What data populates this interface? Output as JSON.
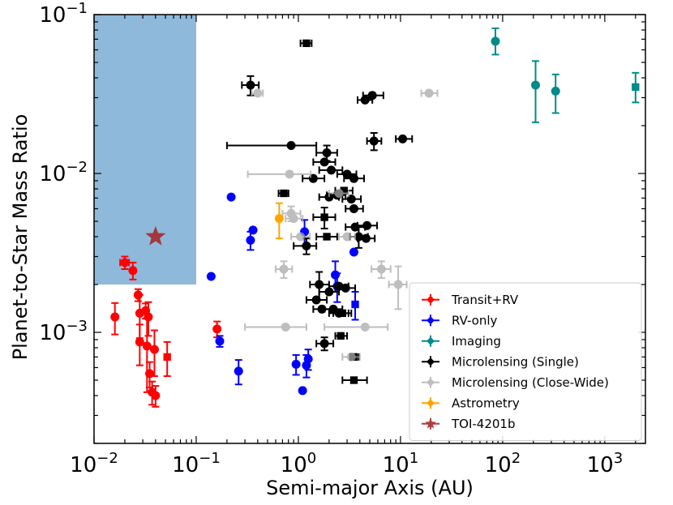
{
  "chart_data": {
    "type": "scatter",
    "title": "",
    "xlabel": "Semi-major Axis (AU)",
    "ylabel": "Planet-to-Star Mass Ratio",
    "xscale": "log",
    "yscale": "log",
    "xlim": [
      0.01,
      2500
    ],
    "ylim": [
      0.0002,
      0.1
    ],
    "x_ticks": [
      {
        "value": 0.01,
        "base": "10",
        "exp": "−2"
      },
      {
        "value": 0.1,
        "base": "10",
        "exp": "−1"
      },
      {
        "value": 1,
        "base": "10",
        "exp": "0"
      },
      {
        "value": 10,
        "base": "10",
        "exp": "1"
      },
      {
        "value": 100,
        "base": "10",
        "exp": "2"
      },
      {
        "value": 1000,
        "base": "10",
        "exp": "3"
      }
    ],
    "y_ticks": [
      {
        "value": 0.001,
        "base": "10",
        "exp": "−3"
      },
      {
        "value": 0.01,
        "base": "10",
        "exp": "−2"
      },
      {
        "value": 0.1,
        "base": "10",
        "exp": "−1"
      }
    ],
    "shaded_region": {
      "x": [
        0.01,
        0.1
      ],
      "y": [
        0.002,
        0.1
      ],
      "color": "#8fb9db"
    },
    "legend_position": "lower right",
    "series": [
      {
        "name": "Transit+RV",
        "color": "#ff0000",
        "alpha": 1,
        "points": [
          {
            "x": 0.016,
            "y": 0.00125,
            "yerr": [
              0.00028,
              0.00028
            ],
            "marker": "o"
          },
          {
            "x": 0.02,
            "y": 0.00275,
            "yerr": [
              0.00025,
              0.00025
            ],
            "xerr": [
              0.002,
              0.002
            ],
            "marker": "o"
          },
          {
            "x": 0.024,
            "y": 0.00245,
            "yerr": [
              0.0003,
              0.0003
            ],
            "marker": "o"
          },
          {
            "x": 0.027,
            "y": 0.00172,
            "yerr": [
              0.00015,
              0.00015
            ],
            "marker": "o"
          },
          {
            "x": 0.028,
            "y": 0.00132,
            "yerr": [
              0.0004,
              0.0004
            ],
            "marker": "o"
          },
          {
            "x": 0.028,
            "y": 0.00087,
            "yerr": [
              0.00025,
              0.00025
            ],
            "marker": "o"
          },
          {
            "x": 0.032,
            "y": 0.00137,
            "yerr": [
              0.00015,
              0.00015
            ],
            "marker": "o"
          },
          {
            "x": 0.033,
            "y": 0.00082,
            "yerr": [
              0.0004,
              0.0004
            ],
            "marker": "o"
          },
          {
            "x": 0.034,
            "y": 0.00125,
            "yerr": [
              0.0003,
              0.0003
            ],
            "marker": "o"
          },
          {
            "x": 0.035,
            "y": 0.00055,
            "yerr": [
              0.0001,
              0.0001
            ],
            "marker": "o"
          },
          {
            "x": 0.037,
            "y": 0.00042,
            "yerr": [
              7e-05,
              7e-05
            ],
            "marker": "o"
          },
          {
            "x": 0.039,
            "y": 0.00078,
            "yerr": [
              0.00025,
              0.00025
            ],
            "marker": "o"
          },
          {
            "x": 0.04,
            "y": 0.0004,
            "yerr": [
              6e-05,
              6e-05
            ],
            "marker": "o"
          },
          {
            "x": 0.052,
            "y": 0.0007,
            "yerr": [
              0.00017,
              0.00017
            ],
            "marker": "s"
          },
          {
            "x": 0.16,
            "y": 0.00105,
            "yerr": [
              0.00012,
              0.00012
            ],
            "marker": "o"
          }
        ]
      },
      {
        "name": "RV-only",
        "color": "#0000ff",
        "alpha": 1,
        "points": [
          {
            "x": 0.14,
            "y": 0.00225,
            "marker": "o"
          },
          {
            "x": 0.17,
            "y": 0.00088,
            "yerr": [
              7e-05,
              7e-05
            ],
            "marker": "o"
          },
          {
            "x": 0.22,
            "y": 0.0071,
            "marker": "o"
          },
          {
            "x": 0.26,
            "y": 0.00057,
            "yerr": [
              0.0001,
              0.0001
            ],
            "marker": "o"
          },
          {
            "x": 0.34,
            "y": 0.0038,
            "yerr": [
              0.0005,
              0.0005
            ],
            "marker": "o"
          },
          {
            "x": 0.36,
            "y": 0.0044,
            "marker": "o"
          },
          {
            "x": 0.95,
            "y": 0.00063,
            "yerr": [
              9e-05,
              9e-05
            ],
            "marker": "o"
          },
          {
            "x": 1.1,
            "y": 0.00043,
            "marker": "o"
          },
          {
            "x": 1.15,
            "y": 0.0043,
            "yerr": [
              0.0008,
              0.0008
            ],
            "marker": "o"
          },
          {
            "x": 1.2,
            "y": 0.00062,
            "yerr": [
              0.0001,
              0.0001
            ],
            "marker": "o"
          },
          {
            "x": 1.25,
            "y": 0.00068,
            "yerr": [
              0.0001,
              0.0001
            ],
            "marker": "o"
          },
          {
            "x": 2.3,
            "y": 0.0023,
            "yerr": [
              0.0005,
              0.0005
            ],
            "marker": "o"
          },
          {
            "x": 2.4,
            "y": 0.00195,
            "yerr": [
              0.0004,
              0.0004
            ],
            "marker": "o"
          },
          {
            "x": 3.5,
            "y": 0.0032,
            "marker": "o"
          },
          {
            "x": 3.6,
            "y": 0.0015,
            "yerr": [
              0.0003,
              0.0003
            ],
            "marker": "s"
          }
        ]
      },
      {
        "name": "Imaging",
        "color": "#008b8b",
        "alpha": 1,
        "points": [
          {
            "x": 85,
            "y": 0.068,
            "yerr": [
              0.012,
              0.014
            ],
            "marker": "o"
          },
          {
            "x": 210,
            "y": 0.036,
            "yerr": [
              0.015,
              0.015
            ],
            "marker": "o"
          },
          {
            "x": 330,
            "y": 0.033,
            "yerr": [
              0.009,
              0.009
            ],
            "marker": "o"
          },
          {
            "x": 2000,
            "y": 0.035,
            "yerr": [
              0.007,
              0.008
            ],
            "marker": "s"
          }
        ]
      },
      {
        "name": "Microlensing (Single)",
        "color": "#000000",
        "alpha": 1,
        "points": [
          {
            "x": 1.2,
            "y": 0.066,
            "xerr": [
              0.15,
              0.15
            ],
            "marker": "s"
          },
          {
            "x": 0.34,
            "y": 0.036,
            "xerr": [
              0.06,
              0.07
            ],
            "yerr": [
              0.005,
              0.005
            ],
            "marker": "o"
          },
          {
            "x": 4.5,
            "y": 0.029,
            "xerr": [
              0.7,
              0.8
            ],
            "marker": "o"
          },
          {
            "x": 5.3,
            "y": 0.031,
            "xerr": [
              1.0,
              1.5
            ],
            "marker": "o"
          },
          {
            "x": 5.5,
            "y": 0.016,
            "xerr": [
              0.8,
              1.0
            ],
            "yerr": [
              0.002,
              0.002
            ],
            "marker": "o"
          },
          {
            "x": 10.5,
            "y": 0.0165,
            "xerr": [
              1.5,
              2.5
            ],
            "marker": "o"
          },
          {
            "x": 0.85,
            "y": 0.015,
            "xerr": [
              0.65,
              0.65
            ],
            "marker": "o"
          },
          {
            "x": 1.9,
            "y": 0.0135,
            "xerr": [
              0.4,
              0.5
            ],
            "yerr": [
              0.0015,
              0.0015
            ],
            "marker": "o"
          },
          {
            "x": 1.8,
            "y": 0.0118,
            "xerr": [
              0.4,
              0.5
            ],
            "marker": "o"
          },
          {
            "x": 2.1,
            "y": 0.0105,
            "xerr": [
              0.5,
              0.6
            ],
            "marker": "o"
          },
          {
            "x": 3.0,
            "y": 0.0099,
            "xerr": [
              0.6,
              0.7
            ],
            "marker": "o"
          },
          {
            "x": 1.4,
            "y": 0.0093,
            "xerr": [
              0.3,
              0.4
            ],
            "marker": "o"
          },
          {
            "x": 3.5,
            "y": 0.0093,
            "xerr": [
              0.7,
              0.9
            ],
            "marker": "o"
          },
          {
            "x": 2.8,
            "y": 0.0078,
            "xerr": [
              0.5,
              0.6
            ],
            "marker": "s"
          },
          {
            "x": 0.72,
            "y": 0.0075,
            "xerr": [
              0.08,
              0.08
            ],
            "marker": "s"
          },
          {
            "x": 2.0,
            "y": 0.0071,
            "xerr": [
              0.4,
              0.5
            ],
            "marker": "o"
          },
          {
            "x": 2.4,
            "y": 0.0073,
            "xerr": [
              0.5,
              0.5
            ],
            "marker": "o"
          },
          {
            "x": 3.3,
            "y": 0.0069,
            "xerr": [
              0.6,
              0.8
            ],
            "marker": "o"
          },
          {
            "x": 3.5,
            "y": 0.006,
            "xerr": [
              0.6,
              0.8
            ],
            "marker": "o"
          },
          {
            "x": 1.8,
            "y": 0.0053,
            "xerr": [
              0.4,
              0.5
            ],
            "yerr": [
              0.0008,
              0.0008
            ],
            "marker": "s"
          },
          {
            "x": 3.6,
            "y": 0.0046,
            "xerr": [
              0.7,
              0.9
            ],
            "marker": "o"
          },
          {
            "x": 4.7,
            "y": 0.0047,
            "xerr": [
              0.9,
              1.2
            ],
            "marker": "o"
          },
          {
            "x": 1.9,
            "y": 0.004,
            "xerr": [
              0.4,
              0.5
            ],
            "marker": "s"
          },
          {
            "x": 3.9,
            "y": 0.004,
            "xerr": [
              0.7,
              0.9
            ],
            "yerr": [
              0.0006,
              0.0006
            ],
            "marker": "o"
          },
          {
            "x": 4.6,
            "y": 0.0039,
            "xerr": [
              0.8,
              1.0
            ],
            "marker": "o"
          },
          {
            "x": 1.2,
            "y": 0.0035,
            "xerr": [
              0.3,
              0.3
            ],
            "yerr": [
              0.0004,
              0.0004
            ],
            "marker": "o"
          },
          {
            "x": 1.6,
            "y": 0.002,
            "xerr": [
              0.3,
              0.4
            ],
            "yerr": [
              0.0004,
              0.0004
            ],
            "marker": "o"
          },
          {
            "x": 2.0,
            "y": 0.0018,
            "xerr": [
              0.4,
              0.5
            ],
            "marker": "o"
          },
          {
            "x": 2.5,
            "y": 0.00195,
            "xerr": [
              0.5,
              0.6
            ],
            "marker": "o"
          },
          {
            "x": 2.9,
            "y": 0.0019,
            "xerr": [
              0.6,
              0.7
            ],
            "marker": "o"
          },
          {
            "x": 1.5,
            "y": 0.0016,
            "xerr": [
              0.3,
              0.4
            ],
            "marker": "o"
          },
          {
            "x": 1.7,
            "y": 0.0014,
            "xerr": [
              0.3,
              0.4
            ],
            "marker": "o"
          },
          {
            "x": 2.2,
            "y": 0.0014,
            "xerr": [
              0.4,
              0.5
            ],
            "marker": "o"
          },
          {
            "x": 2.5,
            "y": 0.00132,
            "xerr": [
              0.5,
              0.6
            ],
            "marker": "o"
          },
          {
            "x": 2.7,
            "y": 0.00132,
            "xerr": [
              0.5,
              0.6
            ],
            "marker": "s"
          },
          {
            "x": 2.6,
            "y": 0.00095,
            "xerr": [
              0.3,
              0.4
            ],
            "marker": "s"
          },
          {
            "x": 1.8,
            "y": 0.00085,
            "xerr": [
              0.3,
              0.4
            ],
            "yerr": [
              8e-05,
              8e-05
            ],
            "marker": "o"
          },
          {
            "x": 3.5,
            "y": 0.0007,
            "xerr": [
              0.3,
              0.4
            ],
            "marker": "s"
          },
          {
            "x": 3.5,
            "y": 0.0005,
            "xerr": [
              0.8,
              1.2
            ],
            "marker": "s"
          }
        ]
      },
      {
        "name": "Microlensing (Close-Wide)",
        "color": "#a9a9a9",
        "alpha": 0.75,
        "points": [
          {
            "x": 0.4,
            "y": 0.032,
            "xerr": [
              0.05,
              0.05
            ],
            "marker": "o"
          },
          {
            "x": 19,
            "y": 0.032,
            "xerr": [
              3,
              4
            ],
            "marker": "o"
          },
          {
            "x": 0.82,
            "y": 0.0099,
            "xerr": [
              0.5,
              0.5
            ],
            "marker": "o"
          },
          {
            "x": 2.5,
            "y": 0.0075,
            "xerr": [
              0.5,
              0.6
            ],
            "marker": "o"
          },
          {
            "x": 0.85,
            "y": 0.0056,
            "xerr": [
              0.15,
              0.2
            ],
            "yerr": [
              0.0006,
              0.0006
            ],
            "marker": "o"
          },
          {
            "x": 0.9,
            "y": 0.0052,
            "xerr": [
              0.15,
              0.2
            ],
            "marker": "o"
          },
          {
            "x": 1.05,
            "y": 0.004,
            "xerr": [
              0.2,
              0.25
            ],
            "marker": "o"
          },
          {
            "x": 3.0,
            "y": 0.004,
            "xerr": [
              0.5,
              0.6
            ],
            "marker": "o"
          },
          {
            "x": 0.72,
            "y": 0.0025,
            "xerr": [
              0.12,
              0.15
            ],
            "yerr": [
              0.0003,
              0.0003
            ],
            "marker": "o"
          },
          {
            "x": 6.5,
            "y": 0.0025,
            "xerr": [
              1.3,
              1.5
            ],
            "yerr": [
              0.0003,
              0.0003
            ],
            "marker": "o"
          },
          {
            "x": 9.5,
            "y": 0.002,
            "xerr": [
              1.8,
              2
            ],
            "yerr": [
              0.0006,
              0.0006
            ],
            "marker": "o"
          },
          {
            "x": 0.75,
            "y": 0.00108,
            "xerr": [
              0.45,
              0.45
            ],
            "marker": "o"
          },
          {
            "x": 4.5,
            "y": 0.00108,
            "xerr": [
              2.7,
              3
            ],
            "marker": "o"
          },
          {
            "x": 3.3,
            "y": 0.0007,
            "xerr": [
              0.6,
              0.7
            ],
            "marker": "o"
          }
        ]
      },
      {
        "name": "Astrometry",
        "color": "#ffa500",
        "alpha": 1,
        "points": [
          {
            "x": 0.65,
            "y": 0.0052,
            "yerr": [
              0.0013,
              0.0013
            ],
            "marker": "o"
          }
        ]
      },
      {
        "name": "TOI-4201b",
        "color": "#a52a2a",
        "alpha": 0.9,
        "points": [
          {
            "x": 0.04,
            "y": 0.004,
            "marker": "star"
          }
        ]
      }
    ]
  }
}
